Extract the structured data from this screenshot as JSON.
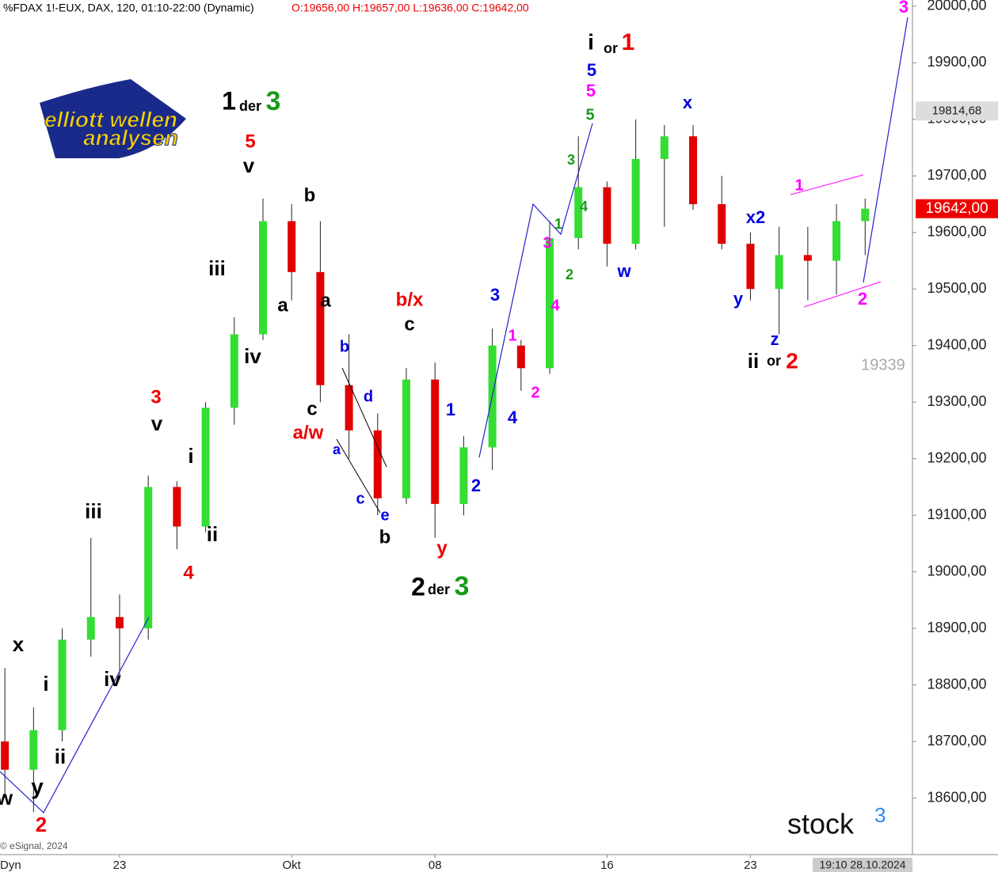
{
  "chart_data": {
    "type": "candlestick",
    "title": "%FDAX 1!-EUX, DAX, 120, 01:10-22:00 (Dynamic)",
    "subtitle": "O:19656,00 H:19657,00 L:19636,00 C:19642,00",
    "x": [
      1,
      2,
      3,
      4,
      5,
      6,
      7,
      8,
      9,
      10,
      11,
      12,
      13,
      14,
      15,
      16,
      17,
      18,
      19,
      20,
      21,
      22,
      23,
      24,
      25,
      26,
      27,
      28,
      29,
      30,
      31
    ],
    "open": [
      18700,
      18650,
      18720,
      18880,
      18920,
      18900,
      19150,
      19080,
      19290,
      19420,
      19620,
      19530,
      19330,
      19250,
      19130,
      19340,
      19120,
      19220,
      19400,
      19360,
      19590,
      19680,
      19580,
      19730,
      19770,
      19650,
      19580,
      19500,
      19560,
      19550,
      19620
    ],
    "high": [
      18830,
      18760,
      18900,
      19060,
      18960,
      19170,
      19160,
      19300,
      19450,
      19660,
      19650,
      19620,
      19420,
      19280,
      19360,
      19370,
      19240,
      19430,
      19410,
      19620,
      19770,
      19690,
      19800,
      19790,
      19790,
      19700,
      19600,
      19610,
      19610,
      19650,
      19660
    ],
    "low": [
      18600,
      18575,
      18700,
      18850,
      18810,
      18880,
      19040,
      19070,
      19260,
      19410,
      19480,
      19300,
      19200,
      19100,
      19120,
      19060,
      19100,
      19180,
      19320,
      19350,
      19570,
      19540,
      19570,
      19610,
      19640,
      19570,
      19480,
      19420,
      19480,
      19490,
      19560
    ],
    "close": [
      18650,
      18720,
      18880,
      18920,
      18900,
      19150,
      19080,
      19290,
      19420,
      19620,
      19530,
      19330,
      19250,
      19130,
      19340,
      19120,
      19220,
      19400,
      19360,
      19590,
      19680,
      19580,
      19730,
      19770,
      19650,
      19580,
      19500,
      19560,
      19550,
      19620,
      19642
    ],
    "colors": {
      "up": "#33dd33",
      "down": "#e00000"
    },
    "xlim": [
      0.83,
      32.65
    ],
    "xticks": [
      {
        "value": 5,
        "label": "23"
      },
      {
        "value": 11,
        "label": "Okt"
      },
      {
        "value": 16,
        "label": "08"
      },
      {
        "value": 22,
        "label": "16"
      },
      {
        "value": 27,
        "label": "23"
      }
    ],
    "ylim": [
      18500,
      20011
    ],
    "yticks": [
      {
        "value": 18600,
        "label": "18600,00"
      },
      {
        "value": 18700,
        "label": "18700,00"
      },
      {
        "value": 18800,
        "label": "18800,00"
      },
      {
        "value": 18900,
        "label": "18900,00"
      },
      {
        "value": 19000,
        "label": "19000,00"
      },
      {
        "value": 19100,
        "label": "19100,00"
      },
      {
        "value": 19200,
        "label": "19200,00"
      },
      {
        "value": 19300,
        "label": "19300,00"
      },
      {
        "value": 19400,
        "label": "19400,00"
      },
      {
        "value": 19500,
        "label": "19500,00"
      },
      {
        "value": 19600,
        "label": "19600,00"
      },
      {
        "value": 19700,
        "label": "19700,00"
      },
      {
        "value": 19800,
        "label": "19800,00"
      },
      {
        "value": 19900,
        "label": "19900,00"
      },
      {
        "value": 20000,
        "label": "20000,00"
      }
    ],
    "price_markers": [
      {
        "value": 19814.68,
        "label": "19814,68"
      },
      {
        "value": 19642,
        "label": "19642,00"
      }
    ],
    "level_text": "19339",
    "annotations": [
      "3",
      "i",
      "or",
      "1",
      "5",
      "5",
      "5",
      "1",
      "der",
      "3",
      "5",
      "v",
      "b",
      "x",
      "3",
      "4",
      "1",
      "3",
      "2",
      "w",
      "x2",
      "1",
      "y",
      "2",
      "z",
      "ii",
      "or",
      "2",
      "iii",
      "a",
      "a",
      "iv",
      "b/x",
      "c",
      "3",
      "4",
      "b",
      "1",
      "d",
      "2",
      "3",
      "v",
      "c",
      "1",
      "4",
      "a/w",
      "a",
      "i",
      "2",
      "c",
      "e",
      "iii",
      "ii",
      "b",
      "y",
      "4",
      "2",
      "der",
      "3",
      "x",
      "i",
      "iv",
      "ii",
      "y",
      "w",
      "2"
    ],
    "footer": {
      "copyright": "© eSignal, 2024",
      "mode": "Dyn",
      "timestamp": "19:10 28.10.2024"
    },
    "logo": {
      "line1": "elliott wellen",
      "line2": "analysen",
      "brand": "stock",
      "brand_sup": "3"
    }
  }
}
